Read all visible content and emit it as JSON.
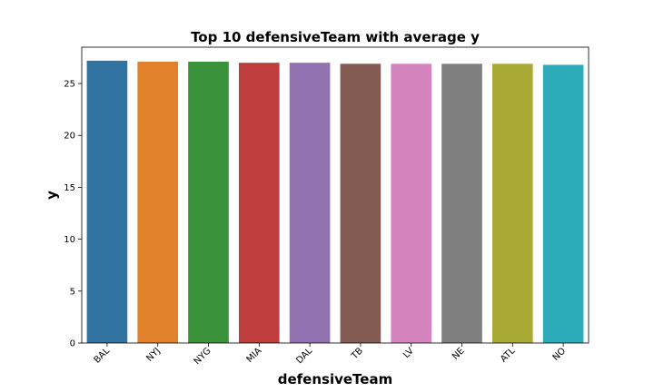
{
  "chart_data": {
    "type": "bar",
    "title": "Top 10 defensiveTeam with average y",
    "xlabel": "defensiveTeam",
    "ylabel": "y",
    "categories": [
      "BAL",
      "NYJ",
      "NYG",
      "MIA",
      "DAL",
      "TB",
      "LV",
      "NE",
      "ATL",
      "NO"
    ],
    "values": [
      27.2,
      27.1,
      27.1,
      27.0,
      27.0,
      26.9,
      26.9,
      26.9,
      26.9,
      26.8
    ],
    "colors": [
      "#3274a1",
      "#e1812c",
      "#3a923a",
      "#c03d3e",
      "#9372b2",
      "#845b53",
      "#d684bd",
      "#7f7f7f",
      "#a9aa35",
      "#2eabb8"
    ],
    "ylim": [
      0,
      28.5
    ],
    "yticks": [
      0,
      5,
      10,
      15,
      20,
      25
    ],
    "grid": false,
    "legend": "none"
  }
}
